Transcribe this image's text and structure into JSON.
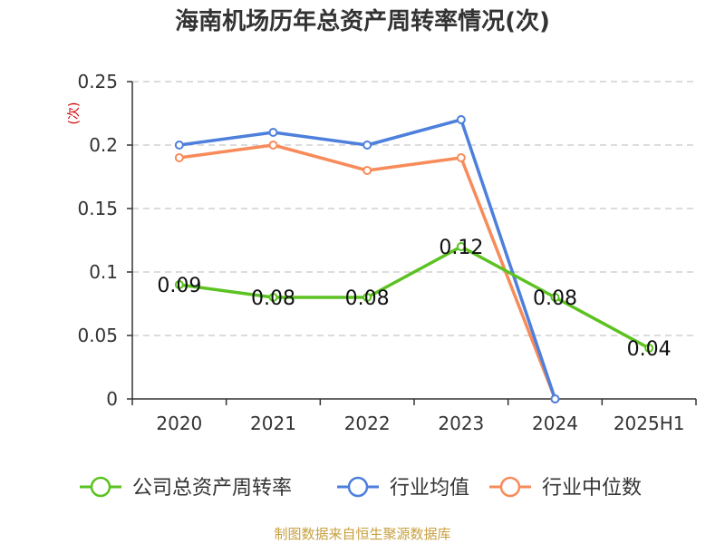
{
  "chart_data": {
    "type": "line",
    "title": "海南机场历年总资产周转率情况(次)",
    "ylabel": "(次)",
    "xlabel": "",
    "categories": [
      "2020",
      "2021",
      "2022",
      "2023",
      "2024",
      "2025H1"
    ],
    "ylim": [
      0,
      0.25
    ],
    "yticks": [
      "0",
      "0.05",
      "0.1",
      "0.15",
      "0.2",
      "0.25"
    ],
    "grid": true,
    "legend_position": "bottom",
    "series": [
      {
        "name": "公司总资产周转率",
        "color": "#5cc221",
        "values": [
          0.09,
          0.08,
          0.08,
          0.12,
          0.08,
          0.04
        ],
        "labels": [
          "0.09",
          "0.08",
          "0.08",
          "0.12",
          "0.08",
          "0.04"
        ]
      },
      {
        "name": "行业均值",
        "color": "#4d7fdc",
        "values": [
          0.2,
          0.21,
          0.2,
          0.22,
          0,
          null
        ]
      },
      {
        "name": "行业中位数",
        "color": "#f78b5a",
        "values": [
          0.19,
          0.2,
          0.18,
          0.19,
          0,
          null
        ]
      }
    ]
  },
  "source": "制图数据来自恒生聚源数据库"
}
